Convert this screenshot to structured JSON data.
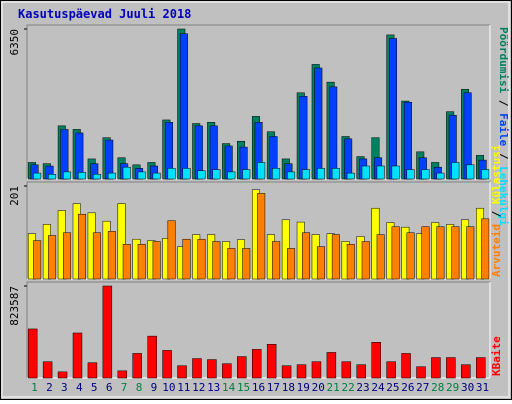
{
  "chart_data": {
    "type": "bar",
    "title": "Kasutuspäevad Juuli 2018",
    "categories": [
      "1",
      "2",
      "3",
      "4",
      "5",
      "6",
      "7",
      "8",
      "9",
      "10",
      "11",
      "12",
      "13",
      "14",
      "15",
      "16",
      "17",
      "18",
      "19",
      "20",
      "21",
      "22",
      "23",
      "24",
      "25",
      "26",
      "27",
      "28",
      "29",
      "30",
      "31"
    ],
    "category_colors": [
      "#008040",
      "#000080",
      "#000080",
      "#000080",
      "#000080",
      "#000080",
      "#008040",
      "#008040",
      "#000080",
      "#000080",
      "#000080",
      "#000080",
      "#000080",
      "#008040",
      "#008040",
      "#000080",
      "#000080",
      "#000080",
      "#000080",
      "#000080",
      "#008040",
      "#008040",
      "#000080",
      "#000080",
      "#000080",
      "#000080",
      "#000080",
      "#008040",
      "#008040",
      "#000080",
      "#000080"
    ],
    "legend_separator": " / ",
    "panels": [
      {
        "ylim": [
          0,
          6350
        ],
        "yticks": [
          6350
        ],
        "series": [
          {
            "name": "Pöördumisi",
            "color": "#008060",
            "values": [
              700,
              650,
              2250,
              2100,
              850,
              1750,
              900,
              600,
              700,
              2500,
              6350,
              2350,
              2400,
              1500,
              1600,
              2650,
              2000,
              850,
              3650,
              4850,
              4100,
              1800,
              950,
              1750,
              6100,
              3300,
              1150,
              700,
              2850,
              3800,
              1000
            ]
          },
          {
            "name": "Faile",
            "color": "#0040ff",
            "values": [
              600,
              550,
              2100,
              1950,
              650,
              1650,
              650,
              450,
              550,
              2400,
              6150,
              2250,
              2250,
              1400,
              1350,
              2400,
              1800,
              650,
              3500,
              4700,
              3900,
              1700,
              850,
              900,
              5950,
              3250,
              900,
              500,
              2700,
              3650,
              800
            ]
          },
          {
            "name": "Lehekülgi",
            "color": "#00e0ff",
            "values": [
              250,
              200,
              300,
              280,
              200,
              250,
              500,
              300,
              250,
              450,
              450,
              350,
              400,
              300,
              400,
              700,
              450,
              300,
              400,
              450,
              450,
              250,
              550,
              550,
              550,
              400,
              400,
              250,
              700,
              600,
              400
            ]
          }
        ]
      },
      {
        "ylim": [
          0,
          201
        ],
        "yticks": [
          201
        ],
        "series": [
          {
            "name": "Külastusi",
            "color": "#ffff00",
            "values": [
              98,
              118,
              148,
              163,
              143,
              125,
              163,
              86,
              83,
              88,
              70,
              96,
              96,
              81,
              85,
              193,
              96,
              128,
              123,
              96,
              98,
              81,
              92,
              153,
              122,
              112,
              98,
              122,
              118,
              128,
              153
            ]
          },
          {
            "name": "Arvuteid",
            "color": "#ff8000",
            "values": [
              83,
              94,
              100,
              140,
              100,
              103,
              75,
              75,
              81,
              126,
              86,
              86,
              81,
              66,
              66,
              185,
              81,
              66,
              100,
              70,
              96,
              75,
              81,
              96,
              113,
              100,
              113,
              113,
              113,
              113,
              130
            ]
          }
        ]
      },
      {
        "ylim": [
          0,
          823587
        ],
        "yticks": [
          823587
        ],
        "series": [
          {
            "name": "KBaite",
            "color": "#ff0000",
            "values": [
              439000,
              146000,
              55000,
              403000,
              137000,
              823587,
              64000,
              220000,
              375000,
              247000,
              110000,
              174000,
              165000,
              128000,
              192000,
              256000,
              302000,
              110000,
              119000,
              146000,
              229000,
              146000,
              119000,
              320000,
              146000,
              220000,
              101000,
              183000,
              183000,
              119000,
              183000
            ]
          }
        ]
      }
    ]
  }
}
